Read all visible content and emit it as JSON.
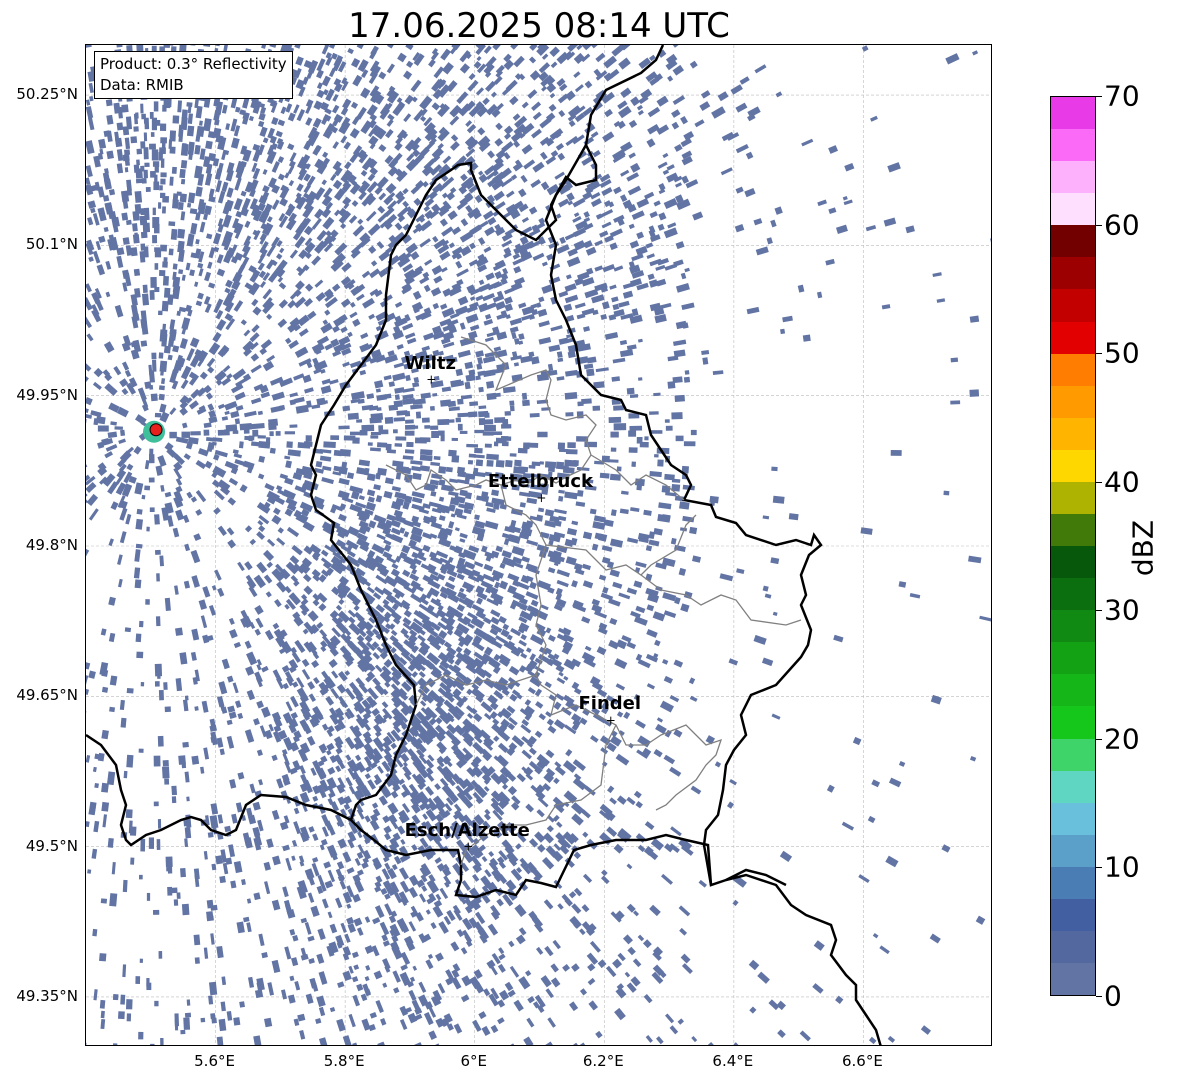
{
  "title": "17.06.2025 08:14 UTC",
  "info": {
    "product": "Product: 0.3° Reflectivity",
    "data": "Data: RMIB"
  },
  "map": {
    "lon_range": [
      5.4,
      6.8
    ],
    "lat_range": [
      49.3,
      50.3
    ],
    "x_ticks": [
      "5.6°E",
      "5.8°E",
      "6°E",
      "6.2°E",
      "6.4°E",
      "6.6°E"
    ],
    "x_tick_values": [
      5.6,
      5.8,
      6.0,
      6.2,
      6.4,
      6.6
    ],
    "y_ticks": [
      "50.25°N",
      "50.1°N",
      "49.95°N",
      "49.8°N",
      "49.65°N",
      "49.5°N",
      "49.35°N"
    ],
    "y_tick_values": [
      50.25,
      50.1,
      49.95,
      49.8,
      49.65,
      49.5,
      49.35
    ],
    "radar_site": {
      "lon": 5.505,
      "lat": 49.914,
      "color": "#e8201c"
    },
    "echo_color": "#6274a4",
    "cities": [
      {
        "name": "Wiltz",
        "lon": 5.933,
        "lat": 49.966
      },
      {
        "name": "Ettelbruck",
        "lon": 6.103,
        "lat": 49.848
      },
      {
        "name": "Findel",
        "lon": 6.21,
        "lat": 49.626
      },
      {
        "name": "Esch/Alzette",
        "lon": 5.99,
        "lat": 49.5
      }
    ]
  },
  "colorbar": {
    "label": "dBZ",
    "min": 0,
    "max": 70,
    "ticks": [
      "0",
      "10",
      "20",
      "30",
      "40",
      "50",
      "60",
      "70"
    ],
    "tick_values": [
      0,
      10,
      20,
      30,
      40,
      50,
      60,
      70
    ],
    "colors_top_to_bottom": [
      "#e93ae8",
      "#fb6af6",
      "#fdb1fc",
      "#fee0fe",
      "#730000",
      "#9c0000",
      "#c20000",
      "#e30000",
      "#ff7d00",
      "#ff9b00",
      "#ffb400",
      "#ffd700",
      "#adb300",
      "#417a08",
      "#07580a",
      "#0c6f0f",
      "#108a13",
      "#13a213",
      "#15b618",
      "#16c71b",
      "#3fd46a",
      "#5fd6c2",
      "#68c0dc",
      "#5aa0c8",
      "#4a7db3",
      "#4260a1",
      "#5468a0",
      "#6274a4"
    ]
  }
}
